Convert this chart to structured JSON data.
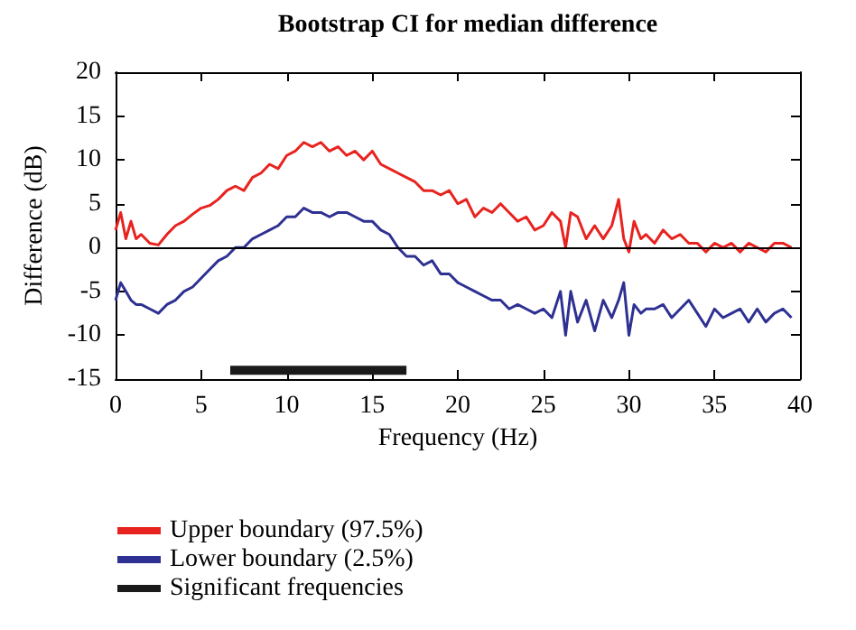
{
  "chart_data": {
    "type": "line",
    "title": "Bootstrap CI for median difference",
    "xlabel": "Frequency (Hz)",
    "ylabel": "Difference (dB)",
    "xlim": [
      0,
      40
    ],
    "xticks": [
      0,
      5,
      10,
      15,
      20,
      25,
      30,
      35,
      40
    ],
    "ylim": [
      -15,
      20
    ],
    "yticks": [
      -15,
      -10,
      -5,
      0,
      5,
      10,
      15,
      20
    ],
    "grid": false,
    "legend": "bottom",
    "marker": "none",
    "line_style": "solid",
    "ref_lines": [
      {
        "axis": "y",
        "value": 0,
        "color": "#000000"
      }
    ],
    "series": [
      {
        "name": "Upper boundary (97.5%)",
        "color": "#e8231f",
        "x": [
          0,
          0.3,
          0.6,
          0.9,
          1.2,
          1.5,
          2,
          2.5,
          3,
          3.5,
          4,
          4.5,
          5,
          5.5,
          6,
          6.5,
          7,
          7.5,
          8,
          8.5,
          9,
          9.5,
          10,
          10.5,
          11,
          11.5,
          12,
          12.5,
          13,
          13.5,
          14,
          14.5,
          15,
          15.5,
          16,
          16.5,
          17,
          17.5,
          18,
          18.5,
          19,
          19.5,
          20,
          20.5,
          21,
          21.5,
          22,
          22.5,
          23,
          23.5,
          24,
          24.5,
          25,
          25.5,
          26,
          26.3,
          26.6,
          27,
          27.5,
          28,
          28.5,
          29,
          29.4,
          29.7,
          30,
          30.3,
          30.7,
          31,
          31.5,
          32,
          32.5,
          33,
          33.5,
          34,
          34.5,
          35,
          35.5,
          36,
          36.5,
          37,
          37.5,
          38,
          38.5,
          39,
          39.5
        ],
        "values": [
          2,
          4,
          1,
          3,
          1,
          1.5,
          0.5,
          0.3,
          1.5,
          2.5,
          3,
          3.8,
          4.5,
          4.8,
          5.5,
          6.5,
          7,
          6.5,
          8,
          8.5,
          9.5,
          9,
          10.5,
          11,
          12,
          11.5,
          12,
          11,
          11.5,
          10.5,
          11,
          10,
          11,
          9.5,
          9,
          8.5,
          8,
          7.5,
          6.5,
          6.5,
          6,
          6.5,
          5,
          5.5,
          3.5,
          4.5,
          4,
          5,
          4,
          3,
          3.5,
          2,
          2.5,
          4,
          3,
          0,
          4,
          3.5,
          1,
          2.5,
          1,
          2.5,
          5.5,
          1,
          -0.5,
          3,
          1,
          1.5,
          0.5,
          2,
          1,
          1.5,
          0.5,
          0.5,
          -0.5,
          0.5,
          0,
          0.5,
          -0.5,
          0.5,
          0,
          -0.5,
          0.5,
          0.5,
          0
        ]
      },
      {
        "name": "Lower boundary (2.5%)",
        "color": "#2e3192",
        "x": [
          0,
          0.3,
          0.6,
          0.9,
          1.2,
          1.5,
          2,
          2.5,
          3,
          3.5,
          4,
          4.5,
          5,
          5.5,
          6,
          6.5,
          7,
          7.5,
          8,
          8.5,
          9,
          9.5,
          10,
          10.5,
          11,
          11.5,
          12,
          12.5,
          13,
          13.5,
          14,
          14.5,
          15,
          15.5,
          16,
          16.5,
          17,
          17.5,
          18,
          18.5,
          19,
          19.5,
          20,
          20.5,
          21,
          21.5,
          22,
          22.5,
          23,
          23.5,
          24,
          24.5,
          25,
          25.5,
          26,
          26.3,
          26.6,
          27,
          27.5,
          28,
          28.5,
          29,
          29.4,
          29.7,
          30,
          30.3,
          30.7,
          31,
          31.5,
          32,
          32.5,
          33,
          33.5,
          34,
          34.5,
          35,
          35.5,
          36,
          36.5,
          37,
          37.5,
          38,
          38.5,
          39,
          39.5
        ],
        "values": [
          -6,
          -4,
          -5,
          -6,
          -6.5,
          -6.5,
          -7,
          -7.5,
          -6.5,
          -6,
          -5,
          -4.5,
          -3.5,
          -2.5,
          -1.5,
          -1,
          0,
          0,
          1,
          1.5,
          2,
          2.5,
          3.5,
          3.5,
          4.5,
          4,
          4,
          3.5,
          4,
          4,
          3.5,
          3,
          3,
          2,
          1.5,
          0,
          -1,
          -1,
          -2,
          -1.5,
          -3,
          -3,
          -4,
          -4.5,
          -5,
          -5.5,
          -6,
          -6,
          -7,
          -6.5,
          -7,
          -7.5,
          -7,
          -8,
          -5,
          -10,
          -5,
          -8.5,
          -6,
          -9.5,
          -6,
          -8,
          -6,
          -4,
          -10,
          -6.5,
          -7.5,
          -7,
          -7,
          -6.5,
          -8,
          -7,
          -6,
          -7.5,
          -9,
          -7,
          -8,
          -7.5,
          -7,
          -8.5,
          -7,
          -8.5,
          -7.5,
          -7,
          -8
        ]
      },
      {
        "name": "Significant frequencies",
        "color": "#1a1a1a",
        "x": [
          6.7,
          17
        ],
        "values": [
          -14,
          -14
        ]
      }
    ]
  }
}
